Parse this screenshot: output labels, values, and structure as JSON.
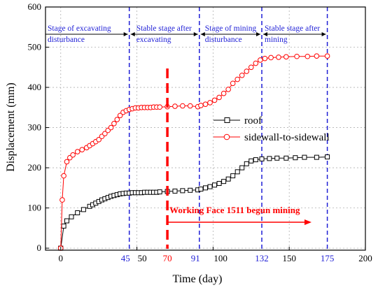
{
  "chart_data": {
    "type": "line",
    "xlabel": "Time (day)",
    "ylabel": "Displacement (mm)",
    "xlim": [
      -10,
      200
    ],
    "ylim": [
      -5,
      600
    ],
    "x_ticks": [
      0,
      50,
      100,
      150,
      200
    ],
    "y_ticks": [
      0,
      100,
      200,
      300,
      400,
      500,
      600
    ],
    "grid": true,
    "legend_position": "right-middle",
    "series": [
      {
        "name": "roof",
        "marker": "square",
        "color": "#000000",
        "x": [
          0,
          2,
          4,
          7,
          11,
          15,
          19,
          21,
          23,
          25,
          27,
          29,
          31,
          33,
          35,
          37,
          39,
          41,
          43,
          45,
          47,
          49,
          51,
          53,
          55,
          57,
          59,
          61,
          63,
          65,
          70,
          75,
          80,
          85,
          90,
          92,
          95,
          98,
          101,
          104,
          107,
          110,
          113,
          116,
          119,
          122,
          125,
          128,
          132,
          137,
          142,
          148,
          154,
          160,
          168,
          175
        ],
        "y": [
          0,
          55,
          68,
          78,
          88,
          96,
          104,
          108,
          112,
          116,
          120,
          123,
          126,
          129,
          131,
          133,
          135,
          136,
          137,
          137,
          138,
          138,
          138,
          138,
          139,
          139,
          139,
          139,
          139,
          140,
          141,
          142,
          143,
          144,
          145,
          147,
          150,
          153,
          157,
          161,
          166,
          172,
          180,
          190,
          200,
          210,
          217,
          220,
          222,
          223,
          224,
          224,
          225,
          226,
          226,
          227
        ]
      },
      {
        "name": "sidewall-to-sidewall",
        "marker": "circle",
        "color": "#ff0000",
        "x": [
          0,
          1,
          2,
          4,
          6,
          8,
          11,
          14,
          17,
          19,
          21,
          23,
          25,
          27,
          29,
          31,
          33,
          35,
          37,
          39,
          41,
          43,
          45,
          47,
          49,
          51,
          53,
          55,
          57,
          59,
          61,
          63,
          65,
          70,
          75,
          80,
          85,
          90,
          92,
          95,
          98,
          101,
          104,
          107,
          110,
          113,
          116,
          119,
          122,
          125,
          128,
          131,
          134,
          138,
          143,
          148,
          155,
          162,
          168,
          175
        ],
        "y": [
          0,
          120,
          180,
          215,
          225,
          232,
          240,
          245,
          250,
          255,
          260,
          265,
          270,
          278,
          285,
          293,
          300,
          310,
          320,
          330,
          338,
          342,
          345,
          347,
          349,
          349,
          350,
          350,
          350,
          350,
          351,
          351,
          351,
          352,
          353,
          354,
          354,
          352,
          355,
          358,
          362,
          368,
          375,
          385,
          395,
          410,
          420,
          430,
          440,
          450,
          460,
          468,
          472,
          474,
          475,
          476,
          477,
          477,
          478,
          478
        ]
      }
    ],
    "stage_lines": [
      {
        "x": 45,
        "label": "45"
      },
      {
        "x": 91,
        "label": "91"
      },
      {
        "x": 132,
        "label": "132"
      },
      {
        "x": 175,
        "label": "175"
      }
    ],
    "stages": [
      {
        "line1": "Stage of excavating",
        "line2": "disturbance"
      },
      {
        "line1": "Stable stage after",
        "line2": "excavating"
      },
      {
        "line1": "Stage of mining",
        "line2": "disturbance"
      },
      {
        "line1": "Stable stage after",
        "line2": "mining"
      }
    ],
    "event": {
      "x": 70,
      "label": "70",
      "annotation": "Working Face 1511 begun mining",
      "color": "#ff0000"
    },
    "colors": {
      "stage_lines": "#1f1fd6",
      "grid": "#b0b0b0"
    }
  }
}
